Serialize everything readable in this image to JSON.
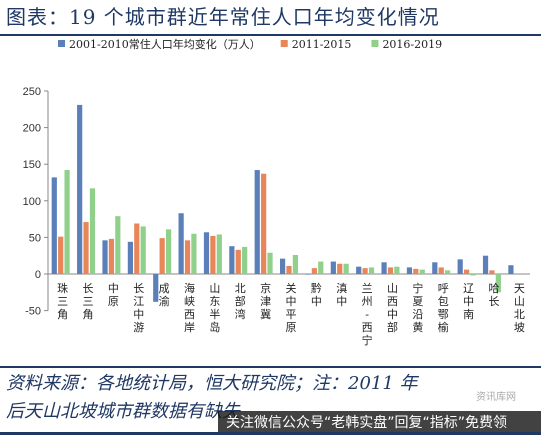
{
  "title": "图表：19 个城市群近年常住人口年均变化情况",
  "source_note": "资料来源：各地统计局，恒大研究院；注：2011 年\n后天山北坡城市群数据有缺失",
  "watermark": "资讯库网",
  "overlay_caption": "关注微信公众号“老韩实盘”回复“指标”免费领",
  "colors": {
    "series1": "#5b7fb8",
    "series2": "#e8865a",
    "series3": "#8fd08a",
    "title_rule": "#1f3864",
    "axis": "#888888"
  },
  "chart_data": {
    "type": "bar",
    "title": "",
    "xlabel": "",
    "ylabel": "",
    "ylim": [
      -50,
      250
    ],
    "yticks": [
      -50,
      0,
      50,
      100,
      150,
      200,
      250
    ],
    "grid": false,
    "legend_position": "top-right",
    "categories": [
      "珠三角",
      "长三角",
      "中原",
      "长江中游",
      "成渝",
      "海峡西岸",
      "山东半岛",
      "北部湾",
      "京津冀",
      "关中平原",
      "黔中",
      "滇中",
      "兰州-西宁",
      "山西中部",
      "宁夏沿黄",
      "呼包鄂榆",
      "辽中南",
      "哈长",
      "天山北坡"
    ],
    "series": [
      {
        "name": "2001-2010常住人口年均变化（万人）",
        "values": [
          132,
          231,
          46,
          44,
          -38,
          83,
          57,
          38,
          142,
          21,
          0,
          17,
          10,
          16,
          9,
          16,
          20,
          25,
          12
        ]
      },
      {
        "name": "2011-2015",
        "values": [
          51,
          71,
          48,
          69,
          49,
          46,
          52,
          33,
          137,
          11,
          8,
          14,
          8,
          9,
          7,
          9,
          6,
          5,
          null
        ]
      },
      {
        "name": "2016-2019",
        "values": [
          142,
          117,
          79,
          65,
          61,
          55,
          54,
          37,
          29,
          26,
          17,
          14,
          9,
          10,
          6,
          5,
          -2,
          -25,
          null
        ]
      }
    ]
  }
}
